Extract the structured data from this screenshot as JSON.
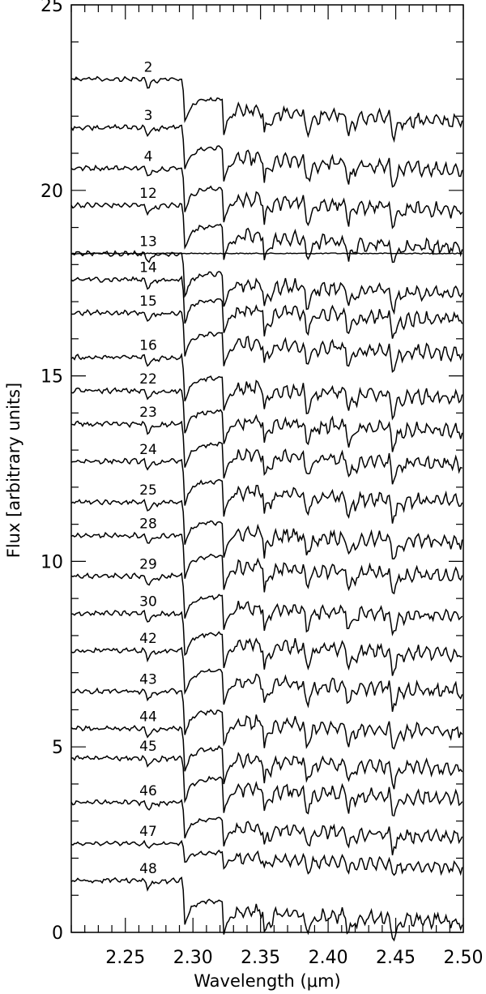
{
  "chart_data": {
    "type": "line",
    "title": "",
    "xlabel": "Wavelength (μm)",
    "ylabel": "Flux [arbitrary units]",
    "xlim": [
      2.21,
      2.5
    ],
    "ylim": [
      0,
      25
    ],
    "x_ticks": [
      "2.25",
      "2.30",
      "2.35",
      "2.40",
      "2.45",
      "2.50"
    ],
    "y_ticks": [
      "0",
      "5",
      "10",
      "15",
      "20",
      "25"
    ],
    "grid": false,
    "reference_line_level": 18.3,
    "series": [
      {
        "name": "2",
        "level": 23.0
      },
      {
        "name": "3",
        "level": 21.7
      },
      {
        "name": "4",
        "level": 20.6
      },
      {
        "name": "12",
        "level": 19.6
      },
      {
        "name": "13",
        "level": 18.3
      },
      {
        "name": "14",
        "level": 17.6
      },
      {
        "name": "15",
        "level": 16.7
      },
      {
        "name": "16",
        "level": 15.5
      },
      {
        "name": "22",
        "level": 14.6
      },
      {
        "name": "23",
        "level": 13.7
      },
      {
        "name": "24",
        "level": 12.7
      },
      {
        "name": "25",
        "level": 11.6
      },
      {
        "name": "28",
        "level": 10.7
      },
      {
        "name": "29",
        "level": 9.6
      },
      {
        "name": "30",
        "level": 8.6
      },
      {
        "name": "42",
        "level": 7.6
      },
      {
        "name": "43",
        "level": 6.5
      },
      {
        "name": "44",
        "level": 5.5
      },
      {
        "name": "45",
        "level": 4.7
      },
      {
        "name": "46",
        "level": 3.5
      },
      {
        "name": "47",
        "level": 2.4
      },
      {
        "name": "48",
        "level": 1.4
      }
    ]
  }
}
